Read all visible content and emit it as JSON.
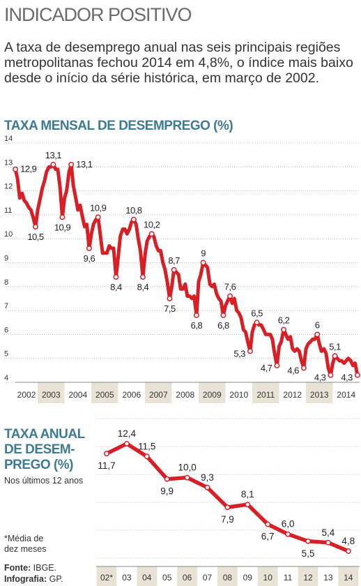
{
  "headline": "INDICADOR POSITIVO",
  "lead": "A taxa de desemprego anual nas seis principais regiões metropolitanas fechou 2014 em 4,8%, o índice mais baixo desde o início da série histórica, em março de 2002.",
  "monthly_title": "TAXA MENSAL DE DESEMPREGO (%)",
  "annual_title": "TAXA ANUAL DE DESEMPREGO (%)",
  "annual_title_lines": [
    "TAXA ANUAL",
    "DE DESEM-",
    "PREGO (%)"
  ],
  "annual_subtitle": "Nos últimos 12 anos",
  "note_lines": [
    "*Média de",
    "dez meses"
  ],
  "source_label": "Fonte:",
  "source_value": "IBGE.",
  "infographic_label": "Infografia:",
  "infographic_value": "GP.",
  "colors": {
    "line": "#d81f26",
    "title": "#3d7a93",
    "band": "#e9e3d6",
    "grid": "#aaaaaa"
  },
  "chart_data": [
    {
      "type": "line",
      "title": "TAXA MENSAL DE DESEMPREGO (%)",
      "y_ticks": [
        4,
        5,
        6,
        7,
        8,
        9,
        10,
        11,
        12,
        13,
        14
      ],
      "ylim": [
        4,
        14
      ],
      "year_labels": [
        "2002",
        "2003",
        "2004",
        "2005",
        "2006",
        "2007",
        "2008",
        "2009",
        "2010",
        "2011",
        "2012",
        "2013",
        "2014"
      ],
      "x_start": 2002.167,
      "x_end": 2015.0,
      "series": [
        {
          "points": [
            [
              2002.17,
              12.9
            ],
            [
              2002.25,
              12.5
            ],
            [
              2002.33,
              11.7
            ],
            [
              2002.42,
              11.9
            ],
            [
              2002.5,
              11.6
            ],
            [
              2002.58,
              11.5
            ],
            [
              2002.67,
              11.3
            ],
            [
              2002.75,
              11.2
            ],
            [
              2002.83,
              10.9
            ],
            [
              2002.92,
              10.5
            ],
            [
              2003.0,
              11.2
            ],
            [
              2003.08,
              11.6
            ],
            [
              2003.17,
              12.1
            ],
            [
              2003.25,
              12.4
            ],
            [
              2003.33,
              12.8
            ],
            [
              2003.42,
              13.0
            ],
            [
              2003.5,
              13.0
            ],
            [
              2003.58,
              13.1
            ],
            [
              2003.67,
              12.9
            ],
            [
              2003.75,
              12.9
            ],
            [
              2003.83,
              12.2
            ],
            [
              2003.92,
              10.9
            ],
            [
              2004.0,
              11.7
            ],
            [
              2004.08,
              12.0
            ],
            [
              2004.17,
              12.8
            ],
            [
              2004.25,
              13.1
            ],
            [
              2004.33,
              12.2
            ],
            [
              2004.42,
              11.7
            ],
            [
              2004.5,
              11.2
            ],
            [
              2004.58,
              11.4
            ],
            [
              2004.67,
              10.9
            ],
            [
              2004.75,
              10.5
            ],
            [
              2004.83,
              10.6
            ],
            [
              2004.92,
              9.6
            ],
            [
              2005.0,
              10.2
            ],
            [
              2005.08,
              10.6
            ],
            [
              2005.17,
              10.8
            ],
            [
              2005.25,
              10.9
            ],
            [
              2005.33,
              10.2
            ],
            [
              2005.42,
              9.4
            ],
            [
              2005.5,
              9.4
            ],
            [
              2005.58,
              9.4
            ],
            [
              2005.67,
              9.7
            ],
            [
              2005.75,
              9.6
            ],
            [
              2005.83,
              9.6
            ],
            [
              2005.92,
              8.4
            ],
            [
              2006.0,
              9.2
            ],
            [
              2006.08,
              10.1
            ],
            [
              2006.17,
              10.4
            ],
            [
              2006.25,
              10.4
            ],
            [
              2006.33,
              10.2
            ],
            [
              2006.42,
              10.4
            ],
            [
              2006.5,
              10.7
            ],
            [
              2006.58,
              10.8
            ],
            [
              2006.67,
              10.6
            ],
            [
              2006.75,
              10.0
            ],
            [
              2006.83,
              9.5
            ],
            [
              2006.92,
              8.4
            ],
            [
              2007.0,
              9.3
            ],
            [
              2007.08,
              9.9
            ],
            [
              2007.17,
              10.1
            ],
            [
              2007.25,
              10.2
            ],
            [
              2007.33,
              10.1
            ],
            [
              2007.42,
              9.7
            ],
            [
              2007.5,
              9.5
            ],
            [
              2007.58,
              9.5
            ],
            [
              2007.67,
              9.0
            ],
            [
              2007.75,
              8.7
            ],
            [
              2007.83,
              8.2
            ],
            [
              2007.92,
              7.5
            ],
            [
              2008.0,
              8.0
            ],
            [
              2008.08,
              8.7
            ],
            [
              2008.17,
              8.6
            ],
            [
              2008.25,
              8.5
            ],
            [
              2008.33,
              7.9
            ],
            [
              2008.42,
              7.9
            ],
            [
              2008.5,
              8.1
            ],
            [
              2008.58,
              7.6
            ],
            [
              2008.67,
              7.6
            ],
            [
              2008.75,
              7.5
            ],
            [
              2008.83,
              7.6
            ],
            [
              2008.92,
              6.8
            ],
            [
              2009.0,
              8.2
            ],
            [
              2009.08,
              8.5
            ],
            [
              2009.17,
              9.0
            ],
            [
              2009.25,
              8.9
            ],
            [
              2009.33,
              8.8
            ],
            [
              2009.42,
              8.1
            ],
            [
              2009.5,
              8.0
            ],
            [
              2009.58,
              8.1
            ],
            [
              2009.67,
              7.7
            ],
            [
              2009.75,
              7.5
            ],
            [
              2009.83,
              7.4
            ],
            [
              2009.92,
              6.8
            ],
            [
              2010.0,
              7.2
            ],
            [
              2010.08,
              7.4
            ],
            [
              2010.17,
              7.6
            ],
            [
              2010.25,
              7.3
            ],
            [
              2010.33,
              7.5
            ],
            [
              2010.42,
              7.0
            ],
            [
              2010.5,
              6.9
            ],
            [
              2010.58,
              6.7
            ],
            [
              2010.67,
              6.2
            ],
            [
              2010.75,
              6.1
            ],
            [
              2010.83,
              5.7
            ],
            [
              2010.92,
              5.3
            ],
            [
              2011.0,
              6.1
            ],
            [
              2011.08,
              6.4
            ],
            [
              2011.17,
              6.5
            ],
            [
              2011.25,
              6.4
            ],
            [
              2011.33,
              6.4
            ],
            [
              2011.42,
              6.2
            ],
            [
              2011.5,
              6.0
            ],
            [
              2011.58,
              6.0
            ],
            [
              2011.67,
              6.0
            ],
            [
              2011.75,
              5.8
            ],
            [
              2011.83,
              5.2
            ],
            [
              2011.92,
              4.7
            ],
            [
              2012.0,
              5.5
            ],
            [
              2012.08,
              5.7
            ],
            [
              2012.17,
              6.2
            ],
            [
              2012.25,
              6.0
            ],
            [
              2012.33,
              5.8
            ],
            [
              2012.42,
              5.9
            ],
            [
              2012.5,
              5.4
            ],
            [
              2012.58,
              5.3
            ],
            [
              2012.67,
              5.4
            ],
            [
              2012.75,
              5.3
            ],
            [
              2012.83,
              4.9
            ],
            [
              2012.92,
              4.6
            ],
            [
              2013.0,
              5.4
            ],
            [
              2013.08,
              5.6
            ],
            [
              2013.17,
              5.7
            ],
            [
              2013.25,
              5.8
            ],
            [
              2013.33,
              5.8
            ],
            [
              2013.42,
              6.0
            ],
            [
              2013.5,
              5.6
            ],
            [
              2013.58,
              5.3
            ],
            [
              2013.67,
              5.4
            ],
            [
              2013.75,
              5.2
            ],
            [
              2013.83,
              4.6
            ],
            [
              2013.92,
              4.3
            ],
            [
              2014.0,
              4.8
            ],
            [
              2014.08,
              5.1
            ],
            [
              2014.17,
              5.0
            ],
            [
              2014.25,
              4.9
            ],
            [
              2014.33,
              4.9
            ],
            [
              2014.42,
              4.8
            ],
            [
              2014.5,
              4.9
            ],
            [
              2014.58,
              5.0
            ],
            [
              2014.67,
              4.9
            ],
            [
              2014.75,
              4.7
            ],
            [
              2014.83,
              4.8
            ],
            [
              2014.92,
              4.3
            ]
          ]
        }
      ],
      "data_labels": [
        {
          "x": 2002.17,
          "y": 12.9,
          "label": "12,9",
          "pos": "right"
        },
        {
          "x": 2002.92,
          "y": 10.5,
          "label": "10,5",
          "pos": "below"
        },
        {
          "x": 2003.58,
          "y": 13.1,
          "label": "13,1",
          "pos": "above"
        },
        {
          "x": 2003.92,
          "y": 10.9,
          "label": "10,9",
          "pos": "below"
        },
        {
          "x": 2004.25,
          "y": 13.1,
          "label": "13,1",
          "pos": "right"
        },
        {
          "x": 2004.92,
          "y": 9.6,
          "label": "9,6",
          "pos": "below"
        },
        {
          "x": 2005.25,
          "y": 10.9,
          "label": "10,9",
          "pos": "above"
        },
        {
          "x": 2005.92,
          "y": 8.4,
          "label": "8,4",
          "pos": "below"
        },
        {
          "x": 2006.58,
          "y": 10.8,
          "label": "10,8",
          "pos": "above"
        },
        {
          "x": 2006.92,
          "y": 8.4,
          "label": "8,4",
          "pos": "below"
        },
        {
          "x": 2007.25,
          "y": 10.2,
          "label": "10,2",
          "pos": "above"
        },
        {
          "x": 2007.92,
          "y": 7.5,
          "label": "7,5",
          "pos": "below"
        },
        {
          "x": 2008.08,
          "y": 8.7,
          "label": "8,7",
          "pos": "above"
        },
        {
          "x": 2008.92,
          "y": 6.8,
          "label": "6,8",
          "pos": "below"
        },
        {
          "x": 2009.17,
          "y": 9.0,
          "label": "9",
          "pos": "above"
        },
        {
          "x": 2009.92,
          "y": 6.8,
          "label": "6,8",
          "pos": "below"
        },
        {
          "x": 2010.17,
          "y": 7.6,
          "label": "7,6",
          "pos": "above"
        },
        {
          "x": 2010.92,
          "y": 5.3,
          "label": "5,3",
          "pos": "left"
        },
        {
          "x": 2011.17,
          "y": 6.5,
          "label": "6,5",
          "pos": "above"
        },
        {
          "x": 2011.92,
          "y": 4.7,
          "label": "4,7",
          "pos": "left"
        },
        {
          "x": 2012.17,
          "y": 6.2,
          "label": "6,2",
          "pos": "above"
        },
        {
          "x": 2012.92,
          "y": 4.6,
          "label": "4,6",
          "pos": "left"
        },
        {
          "x": 2013.42,
          "y": 6.0,
          "label": "6",
          "pos": "above"
        },
        {
          "x": 2013.92,
          "y": 4.3,
          "label": "4,3",
          "pos": "left"
        },
        {
          "x": 2014.08,
          "y": 5.1,
          "label": "5,1",
          "pos": "above"
        },
        {
          "x": 2014.92,
          "y": 4.3,
          "label": "4,3",
          "pos": "left"
        }
      ]
    },
    {
      "type": "line",
      "title": "TAXA ANUAL DE DESEMPREGO (%)",
      "categories": [
        "02*",
        "03",
        "04",
        "05",
        "06",
        "07",
        "08",
        "09",
        "10",
        "11",
        "12",
        "13",
        "14"
      ],
      "values": [
        11.7,
        12.4,
        11.5,
        9.9,
        10.0,
        9.3,
        7.9,
        8.1,
        6.7,
        6.0,
        5.5,
        5.4,
        4.8
      ],
      "labels": [
        "11,7",
        "12,4",
        "11,5",
        "9,9",
        "10,0",
        "9,3",
        "7,9",
        "8,1",
        "6,7",
        "6,0",
        "5,5",
        "5,4",
        "4,8"
      ],
      "label_pos": [
        "below",
        "above",
        "above",
        "below",
        "above",
        "above",
        "below",
        "above",
        "below",
        "above",
        "below",
        "above",
        "above"
      ]
    }
  ]
}
